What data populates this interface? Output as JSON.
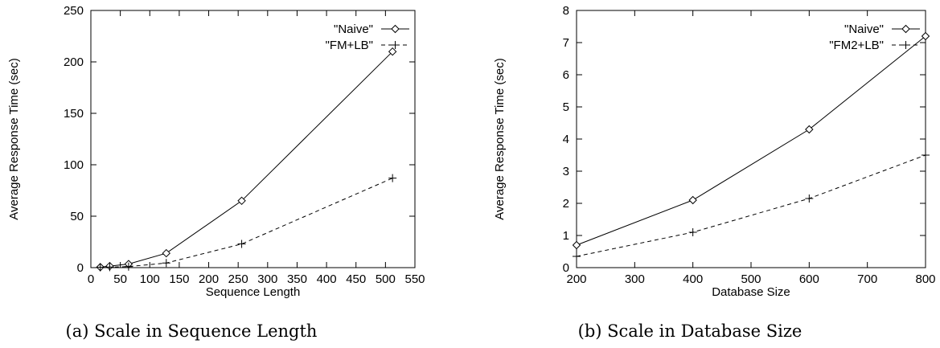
{
  "chart_data": [
    {
      "type": "line",
      "caption": "(a) Scale in Sequence Length",
      "xlabel": "Sequence Length",
      "ylabel": "Average Response Time (sec)",
      "xlim": [
        0,
        550
      ],
      "ylim": [
        0,
        250
      ],
      "xticks": [
        "0",
        "50",
        "100",
        "150",
        "200",
        "250",
        "300",
        "350",
        "400",
        "450",
        "500",
        "550"
      ],
      "yticks": [
        "0",
        "50",
        "100",
        "150",
        "200",
        "250"
      ],
      "grid": false,
      "legend_position": "top-right",
      "series": [
        {
          "name": "\"Naive\"",
          "marker": "diamond",
          "line": "solid",
          "points": [
            [
              16,
              0.5
            ],
            [
              32,
              1.5
            ],
            [
              64,
              3.5
            ],
            [
              128,
              14
            ],
            [
              256,
              65
            ],
            [
              512,
              210
            ]
          ]
        },
        {
          "name": "\"FM+LB\"",
          "marker": "plus",
          "line": "dashed",
          "points": [
            [
              16,
              0.3
            ],
            [
              32,
              0.5
            ],
            [
              64,
              1
            ],
            [
              128,
              4.5
            ],
            [
              256,
              23
            ],
            [
              512,
              87
            ]
          ]
        }
      ]
    },
    {
      "type": "line",
      "caption": "(b) Scale in Database Size",
      "xlabel": "Database Size",
      "ylabel": "Average Response Time (sec)",
      "xlim": [
        200,
        800
      ],
      "ylim": [
        0,
        8
      ],
      "xticks": [
        "200",
        "300",
        "400",
        "500",
        "600",
        "700",
        "800"
      ],
      "yticks": [
        "0",
        "1",
        "2",
        "3",
        "4",
        "5",
        "6",
        "7",
        "8"
      ],
      "grid": false,
      "legend_position": "top-right",
      "series": [
        {
          "name": "\"Naive\"",
          "marker": "diamond",
          "line": "solid",
          "points": [
            [
              200,
              0.7
            ],
            [
              400,
              2.1
            ],
            [
              600,
              4.3
            ],
            [
              800,
              7.2
            ]
          ]
        },
        {
          "name": "\"FM2+LB\"",
          "marker": "plus",
          "line": "dashed",
          "points": [
            [
              200,
              0.35
            ],
            [
              400,
              1.1
            ],
            [
              600,
              2.15
            ],
            [
              800,
              3.5
            ]
          ]
        }
      ]
    }
  ]
}
